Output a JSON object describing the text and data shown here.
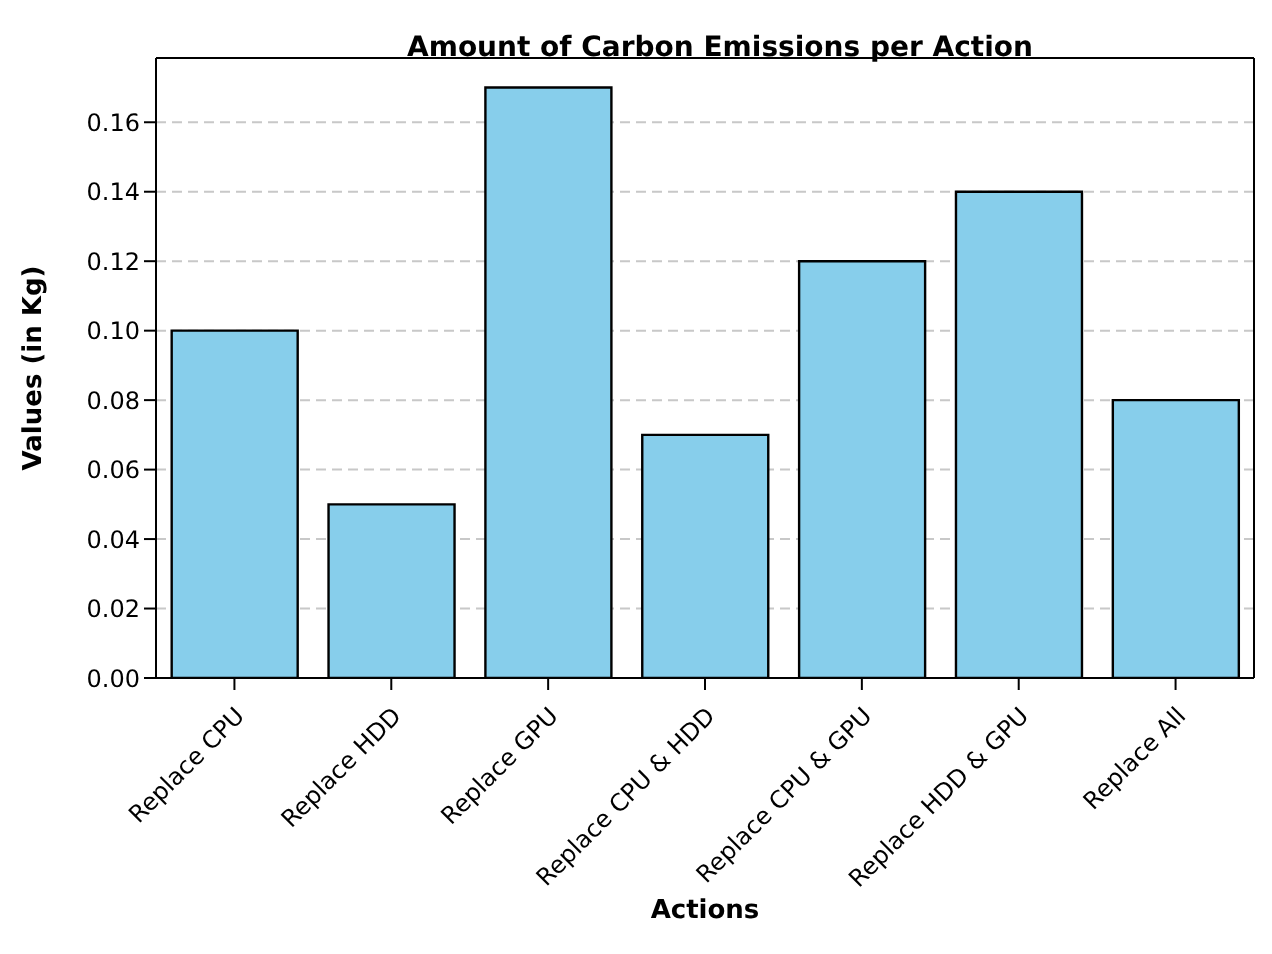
{
  "chart_data": {
    "type": "bar",
    "title": "Amount of Carbon Emissions per Action",
    "xlabel": "Actions",
    "ylabel": "Values (in Kg)",
    "categories": [
      "Replace CPU",
      "Replace HDD",
      "Replace GPU",
      "Replace CPU & HDD",
      "Replace CPU & GPU",
      "Replace HDD & GPU",
      "Replace All"
    ],
    "values": [
      0.1,
      0.05,
      0.17,
      0.07,
      0.12,
      0.14,
      0.08
    ],
    "color": "#87ceeb",
    "ylim": [
      0,
      0.1785
    ],
    "yticks": [
      {
        "value": 0,
        "label": "0.00"
      },
      {
        "value": 0.02,
        "label": "0.02"
      },
      {
        "value": 0.04,
        "label": "0.04"
      },
      {
        "value": 0.06,
        "label": "0.06"
      },
      {
        "value": 0.08,
        "label": "0.08"
      },
      {
        "value": 0.1,
        "label": "0.10"
      },
      {
        "value": 0.12,
        "label": "0.12"
      },
      {
        "value": 0.14,
        "label": "0.14"
      },
      {
        "value": 0.16,
        "label": "0.16"
      }
    ],
    "grid": "y",
    "legend": false
  }
}
